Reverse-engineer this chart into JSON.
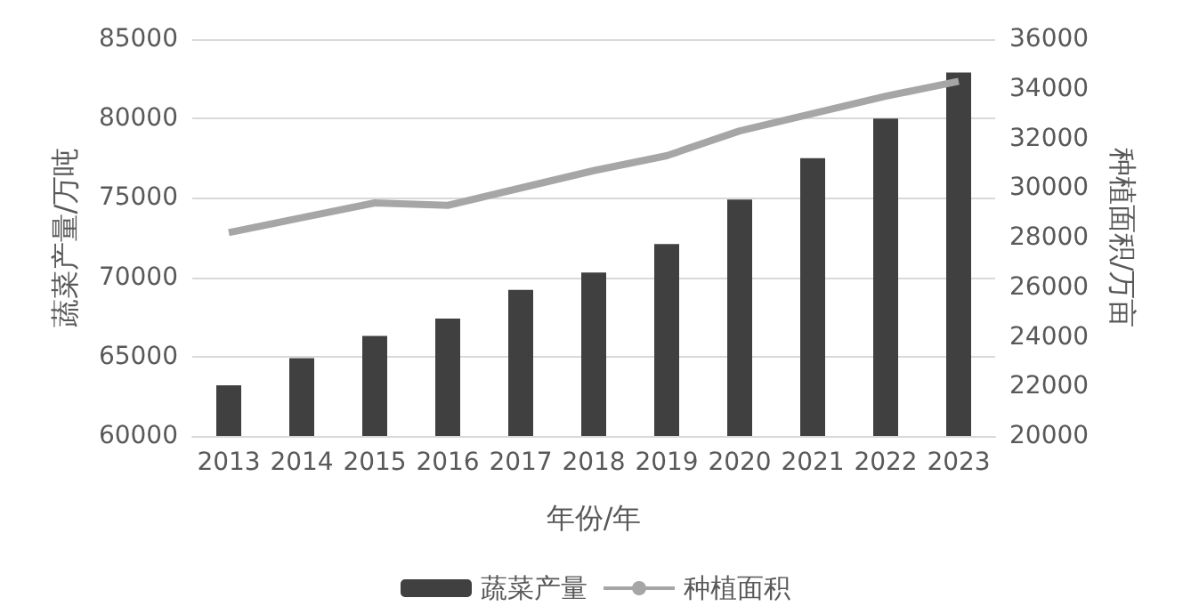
{
  "chart_data": {
    "type": "bar",
    "xlabel": "年份/年",
    "ylabel": "蔬菜产量/万吨",
    "y2label": "种植面积/万亩",
    "categories": [
      "2013",
      "2014",
      "2015",
      "2016",
      "2017",
      "2018",
      "2019",
      "2020",
      "2021",
      "2022",
      "2023"
    ],
    "series": [
      {
        "name": "蔬菜产量",
        "color": "#404040",
        "values": [
          63200,
          64900,
          66300,
          67400,
          69200,
          70300,
          72100,
          74900,
          77500,
          80000,
          82900
        ]
      },
      {
        "name": "种植面积",
        "type": "line",
        "axis": "y2",
        "color": "#a6a6a6",
        "values": [
          28200,
          28800,
          29400,
          29300,
          30000,
          30700,
          31300,
          32300,
          33000,
          33700,
          34300
        ]
      }
    ],
    "ylim": [
      60000,
      85000
    ],
    "yticks": [
      60000,
      65000,
      70000,
      75000,
      80000,
      85000
    ],
    "y2lim": [
      20000,
      36000
    ],
    "y2ticks": [
      20000,
      22000,
      24000,
      26000,
      28000,
      30000,
      32000,
      34000,
      36000
    ],
    "grid": "y",
    "legend": "bottom",
    "marker": "none"
  }
}
